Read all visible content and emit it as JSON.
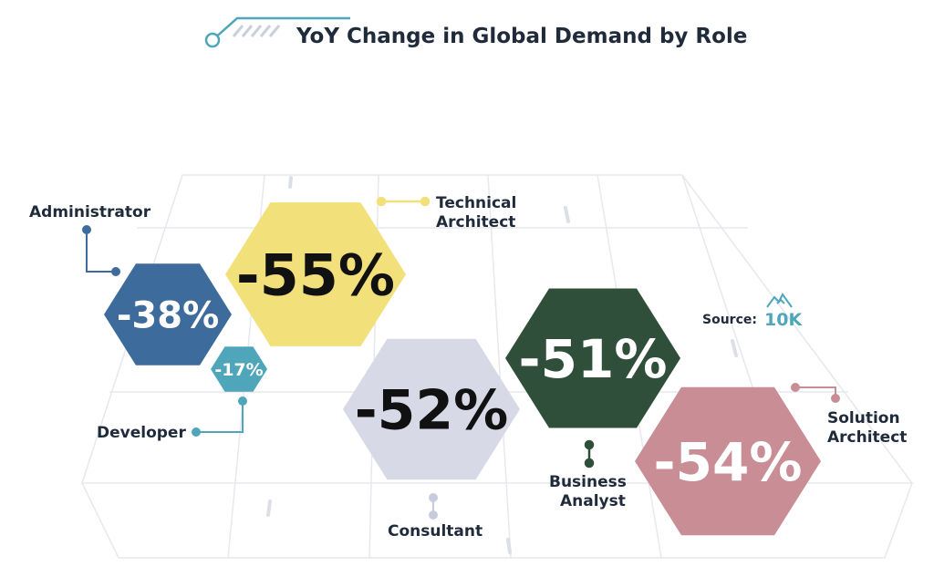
{
  "chart_data": {
    "type": "infographic-hexagon",
    "title": "YoY Change in Global Demand by Role",
    "series": [
      {
        "name": "Administrator",
        "label_lines": [
          "Administrator"
        ],
        "value": -38,
        "value_label": "-38%",
        "color": "#3d6b9c",
        "text_color": "#ffffff"
      },
      {
        "name": "Technical Architect",
        "label_lines": [
          "Technical",
          "Architect"
        ],
        "value": -55,
        "value_label": "-55%",
        "color": "#f2e07a",
        "text_color": "#111111"
      },
      {
        "name": "Developer",
        "label_lines": [
          "Developer"
        ],
        "value": -17,
        "value_label": "-17%",
        "color": "#4fa6ba",
        "text_color": "#ffffff"
      },
      {
        "name": "Consultant",
        "label_lines": [
          "Consultant"
        ],
        "value": -52,
        "value_label": "-52%",
        "color": "#d7d9e6",
        "text_color": "#111111"
      },
      {
        "name": "Business Analyst",
        "label_lines": [
          "Business",
          "Analyst"
        ],
        "value": -51,
        "value_label": "-51%",
        "color": "#2f4f3a",
        "text_color": "#ffffff"
      },
      {
        "name": "Solution Architect",
        "label_lines": [
          "Solution",
          "Architect"
        ],
        "value": -54,
        "value_label": "-54%",
        "color": "#c98d96",
        "text_color": "#ffffff"
      }
    ]
  },
  "source": {
    "label": "Source:",
    "logo_text": "10K",
    "logo_icon": "mountain-icon",
    "color": "#4fa6ba"
  },
  "header_icon": "circuit-line-icon",
  "header_color": "#4fa6ba"
}
